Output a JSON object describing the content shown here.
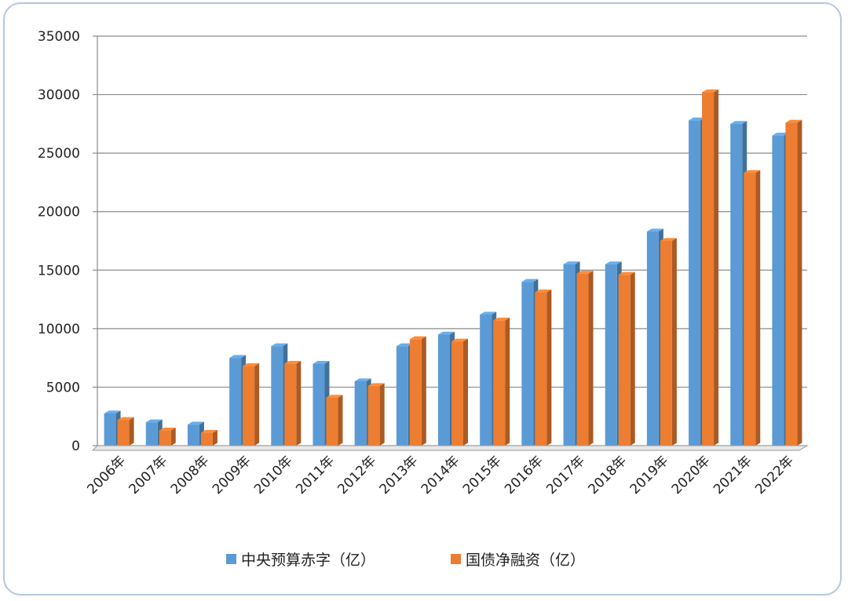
{
  "chart_data": {
    "type": "bar",
    "categories": [
      "2006年",
      "2007年",
      "2008年",
      "2009年",
      "2010年",
      "2011年",
      "2012年",
      "2013年",
      "2014年",
      "2015年",
      "2016年",
      "2017年",
      "2018年",
      "2019年",
      "2020年",
      "2021年",
      "2022年"
    ],
    "series": [
      {
        "name": "中央预算赤字（亿）",
        "color": "#5b9bd5",
        "values": [
          2750,
          2000,
          1800,
          7500,
          8500,
          7000,
          5500,
          8500,
          9500,
          11200,
          14000,
          15500,
          15500,
          18300,
          27800,
          27500,
          26500
        ]
      },
      {
        "name": "国债净融资（亿）",
        "color": "#ed7d31",
        "values": [
          2200,
          1300,
          1100,
          6800,
          7000,
          4100,
          5100,
          9100,
          8900,
          10700,
          13100,
          14700,
          14600,
          17500,
          30200,
          23300,
          27600
        ]
      }
    ],
    "ylim": [
      0,
      35000
    ],
    "yticks": [
      "0",
      "5000",
      "10000",
      "15000",
      "20000",
      "25000",
      "30000",
      "35000"
    ],
    "grid": true,
    "legend_position": "bottom"
  }
}
